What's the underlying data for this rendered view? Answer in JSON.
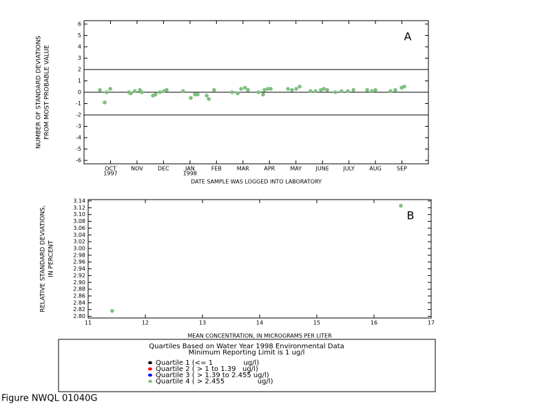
{
  "chart_data": [
    {
      "type": "scatter",
      "ylabel": [
        "NUMBER OF STANDARD DEVIATIONS",
        "FROM MOST PROBABLE VALUE"
      ],
      "xlabel": "DATE SAMPLE WAS LOGGED INTO LABORATORY",
      "annotation": "A",
      "color": "#7fbf7f",
      "x": [
        0.6,
        0.78,
        0.86,
        0.99,
        1.69,
        1.77,
        1.92,
        2.11,
        2.18,
        2.6,
        2.7,
        2.86,
        3.02,
        3.12,
        3.74,
        4.03,
        4.19,
        4.29,
        4.63,
        4.71,
        4.91,
        5.59,
        5.8,
        5.93,
        6.08,
        6.19,
        6.58,
        6.76,
        6.81,
        6.94,
        7.05,
        7.7,
        7.85,
        8.01,
        8.14,
        8.55,
        8.74,
        8.94,
        9.05,
        9.18,
        9.49,
        9.72,
        9.96,
        10.17,
        10.69,
        10.87,
        11.0,
        11.57,
        11.75,
        11.99,
        12.09
      ],
      "values": [
        0.2,
        -0.9,
        0,
        0.3,
        0,
        -0.1,
        0.1,
        0.2,
        0,
        -0.3,
        -0.2,
        0,
        0.1,
        0.2,
        0.1,
        -0.5,
        -0.2,
        -0.2,
        -0.3,
        -0.6,
        0.2,
        0,
        -0.1,
        0.3,
        0.4,
        0.2,
        0,
        -0.2,
        0.2,
        0.3,
        0.3,
        0.3,
        0.2,
        0.3,
        0.5,
        0.1,
        0.1,
        0.2,
        0.3,
        0.2,
        0,
        0.1,
        0.1,
        0.2,
        0.2,
        0.1,
        0.2,
        0.1,
        0.2,
        0.4,
        0.5
      ],
      "xlim": [
        0,
        13
      ],
      "xticks": [
        {
          "value": 1,
          "label": "OCT"
        },
        {
          "value": 2,
          "label": "NOV"
        },
        {
          "value": 3,
          "label": "DEC"
        },
        {
          "value": 4,
          "label": "JAN"
        },
        {
          "value": 5,
          "label": "FEB"
        },
        {
          "value": 6,
          "label": "MAR"
        },
        {
          "value": 7,
          "label": "APR"
        },
        {
          "value": 8,
          "label": "MAY"
        },
        {
          "value": 9,
          "label": "JUNE"
        },
        {
          "value": 10,
          "label": "JULY"
        },
        {
          "value": 11,
          "label": "AUG"
        },
        {
          "value": 12,
          "label": "SEP"
        }
      ],
      "year_labels": [
        {
          "value": 1,
          "label": "1997"
        },
        {
          "value": 4,
          "label": "1998"
        }
      ],
      "ylim": [
        -6.3,
        6.3
      ],
      "yticks": [
        -6,
        -5,
        -4,
        -3,
        -2,
        -1,
        0,
        1,
        2,
        3,
        4,
        5,
        6
      ],
      "reference_lines": [
        2,
        0,
        -2
      ],
      "grid": false
    },
    {
      "type": "scatter",
      "ylabel": [
        "RELATIVE STANDARD DEVIATIONS,",
        "IN PERCENT"
      ],
      "xlabel": "MEAN CONCENTRATION, IN MICROGRAMS PER LITER",
      "annotation": "B",
      "color": "#7fbf7f",
      "x": [
        11.42,
        16.47
      ],
      "values": [
        2.816,
        3.126
      ],
      "xlim": [
        11,
        17
      ],
      "xticks": [
        11,
        12,
        13,
        14,
        15,
        16,
        17
      ],
      "ylim": [
        2.795,
        3.144
      ],
      "yticks": [
        {
          "value": 2.8,
          "label": "2.80"
        },
        {
          "value": 2.82,
          "label": "2.82"
        },
        {
          "value": 2.84,
          "label": "2.84"
        },
        {
          "value": 2.86,
          "label": "2.86"
        },
        {
          "value": 2.88,
          "label": "2.88"
        },
        {
          "value": 2.9,
          "label": "2.90"
        },
        {
          "value": 2.92,
          "label": "2.92"
        },
        {
          "value": 2.94,
          "label": "2.94"
        },
        {
          "value": 2.96,
          "label": "2.96"
        },
        {
          "value": 2.98,
          "label": "2.98"
        },
        {
          "value": 3,
          "label": "3.00"
        },
        {
          "value": 3.02,
          "label": "3.02"
        },
        {
          "value": 3.04,
          "label": "3.04"
        },
        {
          "value": 3.06,
          "label": "3.06"
        },
        {
          "value": 3.08,
          "label": "3.08"
        },
        {
          "value": 3.1,
          "label": "3.10"
        },
        {
          "value": 3.12,
          "label": "3.12"
        },
        {
          "value": 3.14,
          "label": "3.14"
        }
      ],
      "grid": false
    }
  ],
  "legend": {
    "title": "Quartiles Based on Water Year 1998 Environmental Data",
    "subtitle": "Minimum Reporting Limit is 1 ug/l",
    "entries": [
      {
        "label": "Quartile 1 (<= 1              ug/l)",
        "color": "#000000"
      },
      {
        "label": "Quartile 2 ( > 1 to 1.39   ug/l)",
        "color": "#ff0000"
      },
      {
        "label": "Quartile 3 ( > 1.39 to 2.455 ug/l)",
        "color": "#0000ff"
      },
      {
        "label": "Quartile 4 ( > 2.455               ug/l)",
        "color": "#7fbf7f"
      }
    ]
  },
  "figure_label": "Figure NWQL 01040G"
}
